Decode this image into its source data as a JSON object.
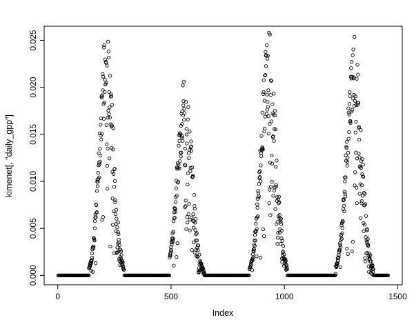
{
  "page": {
    "background": "#ffffff"
  },
  "chart_data": {
    "type": "scatter",
    "title": "",
    "xlabel": "Index",
    "ylabel": "kimenet[, \"daily_gpp\"]",
    "xlim": [
      -60,
      1520
    ],
    "ylim": [
      -0.001,
      0.0265
    ],
    "x_ticks": [
      0,
      500,
      1000,
      1500
    ],
    "x_tick_labels": [
      "0",
      "500",
      "1000",
      "1500"
    ],
    "y_ticks": [
      0,
      0.005,
      0.01,
      0.015,
      0.02,
      0.025
    ],
    "y_tick_labels": [
      "0.000",
      "0.005",
      "0.010",
      "0.015",
      "0.020",
      "0.025"
    ],
    "grid": false,
    "legend": "none",
    "frame_color": "#000000",
    "point": {
      "shape": "open-circle",
      "stroke": "#000000",
      "radius": 2.2,
      "stroke_width": 0.9
    },
    "description": "Daily GPP time series plotted against index: near-zero winter baselines interrupted by four seasonal peaks reaching roughly 0.020 to 0.025.",
    "seed": 42,
    "flat_step": 3,
    "sigma_divisor": 5.2,
    "zero_threshold": 0.0004,
    "y_cap": 0.0258,
    "rise_noise": {
      "base": 0.7,
      "span": 0.32
    },
    "fall_noise": {
      "base": 0.28,
      "span": 0.77,
      "pow": 0.7
    },
    "outlier": {
      "prob": 0.07,
      "base": 0.1,
      "span": 0.25
    },
    "segments": [
      {
        "type": "flat",
        "x0": 2,
        "x1": 138
      },
      {
        "type": "peak",
        "x0": 138,
        "x1": 292,
        "center": 215,
        "max": 0.0255
      },
      {
        "type": "flat",
        "x0": 294,
        "x1": 494
      },
      {
        "type": "peak",
        "x0": 494,
        "x1": 656,
        "center": 560,
        "max": 0.0205
      },
      {
        "type": "flat",
        "x0": 658,
        "x1": 846
      },
      {
        "type": "peak",
        "x0": 846,
        "x1": 1012,
        "center": 930,
        "max": 0.0255
      },
      {
        "type": "flat",
        "x0": 1014,
        "x1": 1226
      },
      {
        "type": "peak",
        "x0": 1226,
        "x1": 1392,
        "center": 1308,
        "max": 0.0245
      },
      {
        "type": "flat",
        "x0": 1394,
        "x1": 1458
      }
    ]
  }
}
